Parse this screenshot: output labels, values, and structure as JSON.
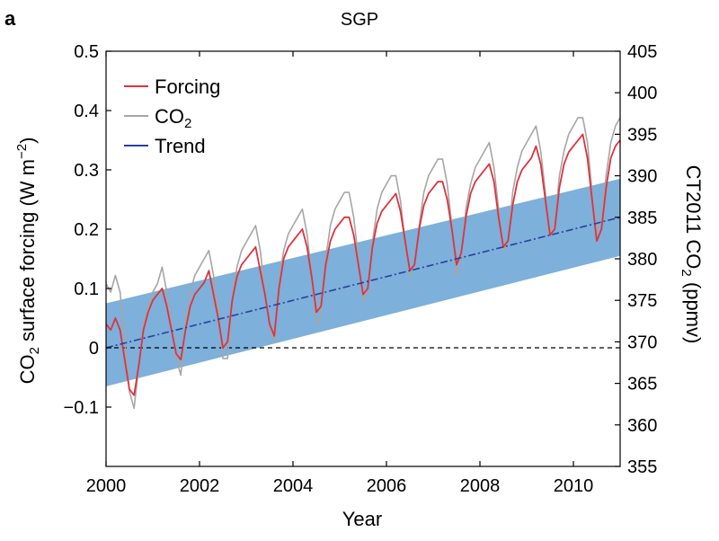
{
  "figure": {
    "panel_letter": "a",
    "title": "SGP"
  },
  "chart_data": {
    "type": "line",
    "title": "SGP",
    "xlabel": "Year",
    "ylabel_left": {
      "main": "CO",
      "sub": "2",
      "rest": " surface forcing (W m",
      "sup": "−2",
      "end": ")"
    },
    "ylabel_right": {
      "main": "CT2011 CO",
      "sub": "2",
      "rest": " (ppmv)"
    },
    "xlim": [
      2000,
      2011
    ],
    "ylim_left": [
      -0.2,
      0.5
    ],
    "ylim_right": [
      355,
      405
    ],
    "x_ticks": [
      2000,
      2002,
      2004,
      2006,
      2008,
      2010
    ],
    "x_tick_labels": [
      "2000",
      "2002",
      "2004",
      "2006",
      "2008",
      "2010"
    ],
    "y_left_ticks": [
      -0.1,
      0,
      0.1,
      0.2,
      0.3,
      0.4,
      0.5
    ],
    "y_left_tick_labels": [
      "−0.1",
      "0",
      "0.1",
      "0.2",
      "0.3",
      "0.4",
      "0.5"
    ],
    "y_right_ticks": [
      355,
      360,
      365,
      370,
      375,
      380,
      385,
      390,
      395,
      400,
      405
    ],
    "y_right_tick_labels": [
      "355",
      "360",
      "365",
      "370",
      "375",
      "380",
      "385",
      "390",
      "395",
      "400",
      "405"
    ],
    "zero_line": {
      "y": 0,
      "style": "dashed"
    },
    "legend": {
      "placement": "top-left",
      "entries": [
        {
          "label": "Forcing",
          "color": "#e0323c"
        },
        {
          "label": "CO",
          "sub": "2",
          "color": "#a6a6a6"
        },
        {
          "label": "Trend",
          "color": "#2a3f9c"
        }
      ]
    },
    "series": [
      {
        "name": "Trend",
        "color": "#2a3f9c",
        "style": "dash-dot",
        "axis": "left",
        "x": [
          2000,
          2011
        ],
        "y": [
          0.0,
          0.22
        ],
        "band": {
          "color": "#6fa7d6",
          "lower": [
            -0.065,
            0.155
          ],
          "upper": [
            0.075,
            0.285
          ]
        }
      },
      {
        "name": "CO2",
        "color": "#a6a6a6",
        "axis": "right",
        "x": [
          2000.0,
          2000.1,
          2000.2,
          2000.3,
          2000.4,
          2000.5,
          2000.6,
          2000.7,
          2000.8,
          2000.9,
          2001.0,
          2001.1,
          2001.2,
          2001.3,
          2001.4,
          2001.5,
          2001.6,
          2001.7,
          2001.8,
          2001.9,
          2002.0,
          2002.1,
          2002.2,
          2002.3,
          2002.4,
          2002.5,
          2002.6,
          2002.7,
          2002.8,
          2002.9,
          2003.0,
          2003.1,
          2003.2,
          2003.3,
          2003.4,
          2003.5,
          2003.6,
          2003.7,
          2003.8,
          2003.9,
          2004.0,
          2004.1,
          2004.2,
          2004.3,
          2004.4,
          2004.5,
          2004.6,
          2004.7,
          2004.8,
          2004.9,
          2005.0,
          2005.1,
          2005.2,
          2005.3,
          2005.4,
          2005.5,
          2005.6,
          2005.7,
          2005.8,
          2005.9,
          2006.0,
          2006.1,
          2006.2,
          2006.3,
          2006.4,
          2006.5,
          2006.6,
          2006.7,
          2006.8,
          2006.9,
          2007.0,
          2007.1,
          2007.2,
          2007.3,
          2007.4,
          2007.5,
          2007.6,
          2007.7,
          2007.8,
          2007.9,
          2008.0,
          2008.1,
          2008.2,
          2008.3,
          2008.4,
          2008.5,
          2008.6,
          2008.7,
          2008.8,
          2008.9,
          2009.0,
          2009.1,
          2009.2,
          2009.3,
          2009.4,
          2009.5,
          2009.6,
          2009.7,
          2009.8,
          2009.9,
          2010.0,
          2010.1,
          2010.2,
          2010.3,
          2010.4,
          2010.5,
          2010.6,
          2010.7,
          2010.8,
          2010.9,
          2011.0
        ],
        "y": [
          377,
          376,
          378,
          376,
          370,
          364,
          362,
          367,
          372,
          374,
          376,
          377,
          379,
          376,
          372,
          368,
          366,
          372,
          376,
          378,
          379,
          380,
          381,
          378,
          374,
          368,
          368,
          375,
          379,
          381,
          382,
          383,
          384,
          381,
          376,
          372,
          370,
          377,
          381,
          383,
          384,
          385,
          386,
          383,
          378,
          372,
          373,
          380,
          384,
          386,
          387,
          388,
          388,
          385,
          380,
          375,
          376,
          382,
          386,
          388,
          389,
          390,
          390,
          387,
          382,
          378,
          379,
          384,
          388,
          390,
          391,
          392,
          392,
          389,
          384,
          378,
          380,
          386,
          389,
          391,
          392,
          393,
          394,
          391,
          386,
          381,
          382,
          388,
          391,
          393,
          394,
          395,
          396,
          393,
          388,
          383,
          384,
          390,
          393,
          395,
          396,
          397,
          397,
          394,
          388,
          383,
          385,
          390,
          394,
          396,
          397
        ]
      },
      {
        "name": "Forcing",
        "color": "#e0323c",
        "axis": "left",
        "x": [
          2000.0,
          2000.1,
          2000.2,
          2000.3,
          2000.4,
          2000.5,
          2000.6,
          2000.7,
          2000.8,
          2000.9,
          2001.0,
          2001.1,
          2001.2,
          2001.3,
          2001.4,
          2001.5,
          2001.6,
          2001.7,
          2001.8,
          2001.9,
          2002.0,
          2002.1,
          2002.2,
          2002.3,
          2002.4,
          2002.5,
          2002.6,
          2002.7,
          2002.8,
          2002.9,
          2003.0,
          2003.1,
          2003.2,
          2003.3,
          2003.4,
          2003.5,
          2003.6,
          2003.7,
          2003.8,
          2003.9,
          2004.0,
          2004.1,
          2004.2,
          2004.3,
          2004.4,
          2004.5,
          2004.6,
          2004.7,
          2004.8,
          2004.9,
          2005.0,
          2005.1,
          2005.2,
          2005.3,
          2005.4,
          2005.5,
          2005.6,
          2005.7,
          2005.8,
          2005.9,
          2006.0,
          2006.1,
          2006.2,
          2006.3,
          2006.4,
          2006.5,
          2006.6,
          2006.7,
          2006.8,
          2006.9,
          2007.0,
          2007.1,
          2007.2,
          2007.3,
          2007.4,
          2007.5,
          2007.6,
          2007.7,
          2007.8,
          2007.9,
          2008.0,
          2008.1,
          2008.2,
          2008.3,
          2008.4,
          2008.5,
          2008.6,
          2008.7,
          2008.8,
          2008.9,
          2009.0,
          2009.1,
          2009.2,
          2009.3,
          2009.4,
          2009.5,
          2009.6,
          2009.7,
          2009.8,
          2009.9,
          2010.0,
          2010.1,
          2010.2,
          2010.3,
          2010.4,
          2010.5,
          2010.6,
          2010.7,
          2010.8,
          2010.9,
          2011.0
        ],
        "y": [
          0.04,
          0.03,
          0.05,
          0.03,
          -0.02,
          -0.07,
          -0.08,
          -0.03,
          0.03,
          0.06,
          0.08,
          0.09,
          0.1,
          0.07,
          0.03,
          -0.01,
          -0.02,
          0.03,
          0.07,
          0.09,
          0.1,
          0.11,
          0.13,
          0.09,
          0.05,
          0.0,
          0.01,
          0.08,
          0.12,
          0.14,
          0.15,
          0.16,
          0.17,
          0.13,
          0.09,
          0.04,
          0.02,
          0.1,
          0.15,
          0.17,
          0.18,
          0.19,
          0.2,
          0.17,
          0.12,
          0.06,
          0.07,
          0.14,
          0.18,
          0.2,
          0.21,
          0.22,
          0.22,
          0.19,
          0.14,
          0.09,
          0.1,
          0.17,
          0.21,
          0.23,
          0.24,
          0.25,
          0.26,
          0.23,
          0.18,
          0.13,
          0.14,
          0.2,
          0.24,
          0.26,
          0.27,
          0.28,
          0.28,
          0.25,
          0.2,
          0.14,
          0.16,
          0.22,
          0.26,
          0.28,
          0.29,
          0.3,
          0.31,
          0.28,
          0.22,
          0.17,
          0.18,
          0.24,
          0.28,
          0.3,
          0.31,
          0.32,
          0.34,
          0.31,
          0.25,
          0.19,
          0.2,
          0.27,
          0.31,
          0.33,
          0.34,
          0.35,
          0.36,
          0.32,
          0.25,
          0.18,
          0.2,
          0.27,
          0.32,
          0.34,
          0.35
        ]
      }
    ]
  }
}
